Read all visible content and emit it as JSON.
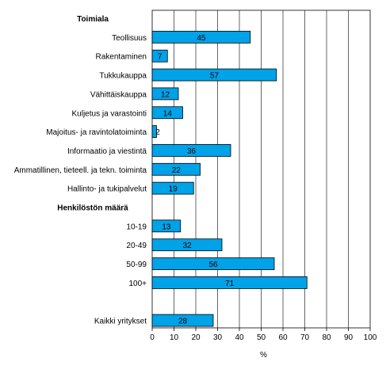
{
  "chart_data": {
    "type": "bar",
    "orientation": "horizontal",
    "xlabel": "%",
    "xlim": [
      0,
      100
    ],
    "xticks": [
      0,
      10,
      20,
      30,
      40,
      50,
      60,
      70,
      80,
      90,
      100
    ],
    "grid": true,
    "bar_color": "#00a2e8",
    "groups": [
      {
        "title": "Toimiala",
        "items": [
          {
            "label": "Teollisuus",
            "value": 45
          },
          {
            "label": "Rakentaminen",
            "value": 7
          },
          {
            "label": "Tukkukauppa",
            "value": 57
          },
          {
            "label": "Vähittäiskauppa",
            "value": 12
          },
          {
            "label": "Kuljetus ja varastointi",
            "value": 14
          },
          {
            "label": "Majoitus- ja ravintolatoiminta",
            "value": 2
          },
          {
            "label": "Informaatio ja viestintä",
            "value": 36
          },
          {
            "label": "Ammatillinen, tieteell. ja tekn. toiminta",
            "value": 22
          },
          {
            "label": "Hallinto- ja tukipalvelut",
            "value": 19
          }
        ]
      },
      {
        "title": "Henkilöstön määrä",
        "items": [
          {
            "label": "10-19",
            "value": 13
          },
          {
            "label": "20-49",
            "value": 32
          },
          {
            "label": "50-99",
            "value": 56
          },
          {
            "label": "100+",
            "value": 71
          }
        ]
      },
      {
        "title": "",
        "items": [
          {
            "label": "Kaikki yritykset",
            "value": 28
          }
        ]
      }
    ]
  }
}
